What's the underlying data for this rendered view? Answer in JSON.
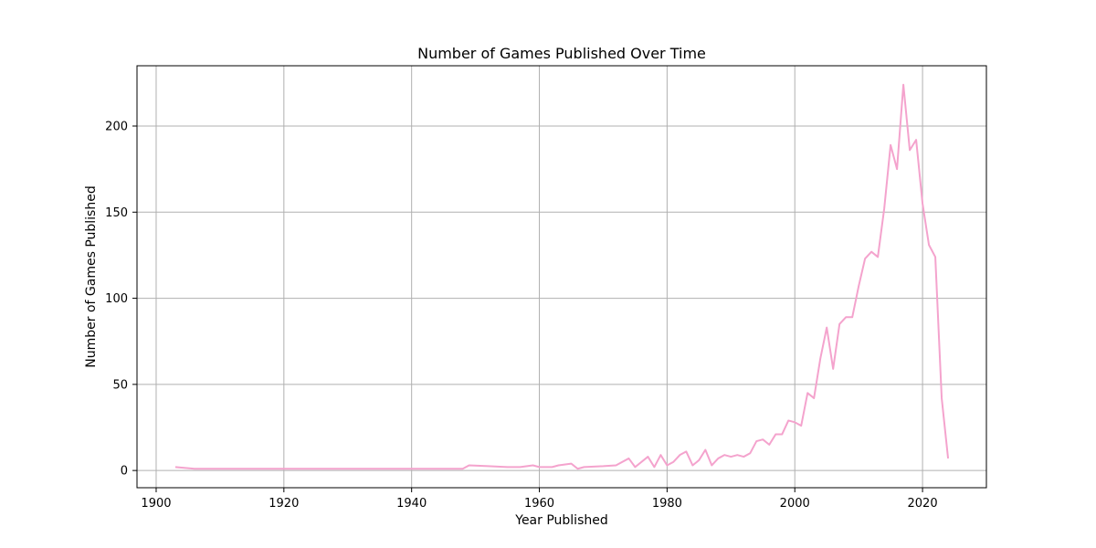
{
  "chart_data": {
    "type": "line",
    "title": "Number of Games Published Over Time",
    "xlabel": "Year Published",
    "ylabel": "Number of Games Published",
    "xlim": [
      1897,
      2030
    ],
    "ylim": [
      -10,
      235
    ],
    "x_ticks": [
      1900,
      1920,
      1940,
      1960,
      1980,
      2000,
      2020
    ],
    "y_ticks": [
      0,
      50,
      100,
      150,
      200
    ],
    "grid": true,
    "legend": "none",
    "colors": {
      "line": "#f4a3cd",
      "grid": "#b0b0b0",
      "axes": "#000000"
    },
    "series": [
      {
        "x": [
          1903,
          1906,
          1909,
          1912,
          1915,
          1918,
          1921,
          1924,
          1927,
          1930,
          1933,
          1936,
          1939,
          1942,
          1945,
          1948,
          1949,
          1952,
          1955,
          1957,
          1959,
          1960,
          1962,
          1963,
          1965,
          1966,
          1967,
          1970,
          1972,
          1974,
          1975,
          1977,
          1978,
          1979,
          1980,
          1981,
          1982,
          1983,
          1984,
          1985,
          1986,
          1987,
          1988,
          1989,
          1990,
          1991,
          1992,
          1993,
          1994,
          1995,
          1996,
          1997,
          1998,
          1999,
          2000,
          2001,
          2002,
          2003,
          2004,
          2005,
          2006,
          2007,
          2008,
          2009,
          2010,
          2011,
          2012,
          2013,
          2014,
          2015,
          2016,
          2017,
          2018,
          2019,
          2020,
          2021,
          2022,
          2023,
          2024
        ],
        "values": [
          2,
          1,
          1,
          1,
          1,
          1,
          1,
          1,
          1,
          1,
          1,
          1,
          1,
          1,
          1,
          1,
          3,
          2.5,
          2,
          2,
          3,
          2,
          2,
          3,
          4,
          1,
          2,
          2.5,
          3,
          7,
          2,
          8,
          2,
          9,
          3,
          5,
          9,
          11,
          3,
          6,
          12,
          3,
          7,
          9,
          8,
          9,
          8,
          10,
          17,
          18,
          15,
          21,
          21,
          29,
          28,
          26,
          45,
          42,
          65,
          83,
          59,
          85,
          89,
          89,
          107,
          123,
          127,
          124,
          152,
          189,
          175,
          224,
          186,
          192,
          155,
          131,
          124,
          42,
          7
        ]
      }
    ]
  }
}
